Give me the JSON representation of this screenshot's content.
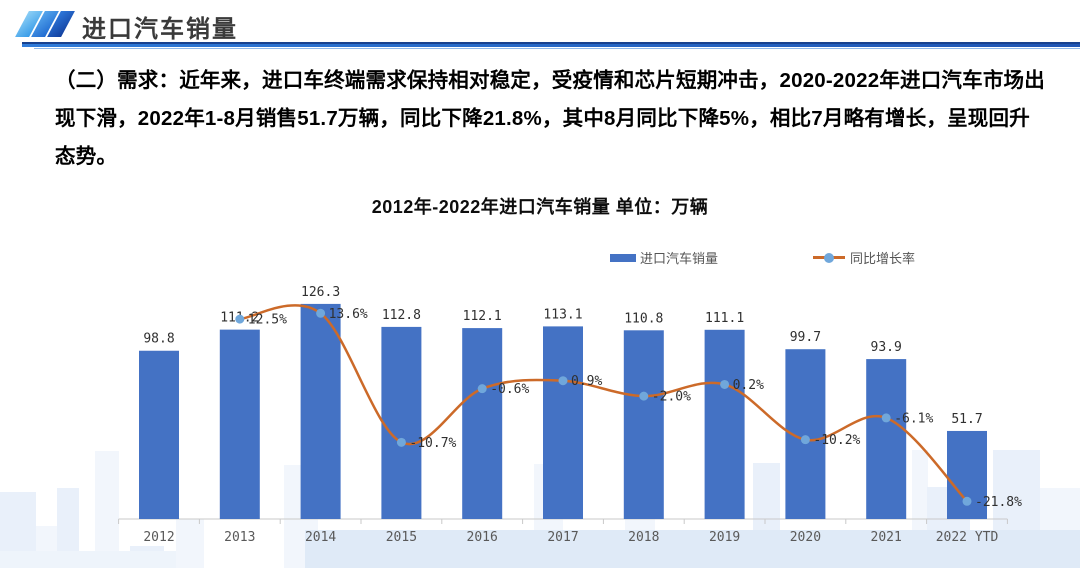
{
  "slide": {
    "header": {
      "title": "进口汽车销量"
    },
    "paragraph": "（二）需求：近年来，进口车终端需求保持相对稳定，受疫情和芯片短期冲击，2020-2022年进口汽车市场出现下滑，2022年1-8月销售51.7万辆，同比下降21.8%，其中8月同比下降5%，相比7月略有增长，呈现回升态势。",
    "chart_title": "2012年-2022年进口汽车销量 单位：万辆"
  },
  "chart_data": {
    "type": "bar",
    "title": "2012年-2022年进口汽车销量",
    "unit": "万辆",
    "categories": [
      "2012",
      "2013",
      "2014",
      "2015",
      "2016",
      "2017",
      "2018",
      "2019",
      "2020",
      "2021",
      "2022 YTD"
    ],
    "series": [
      {
        "name": "进口汽车销量",
        "type": "bar",
        "color": "#4472C4",
        "values": [
          98.8,
          111.2,
          126.3,
          112.8,
          112.1,
          113.1,
          110.8,
          111.1,
          99.7,
          93.9,
          51.7
        ],
        "labels": [
          "98.8",
          "111.2",
          "126.3",
          "112.8",
          "112.1",
          "113.1",
          "110.8",
          "111.1",
          "99.7",
          "93.9",
          "51.7"
        ]
      },
      {
        "name": "同比增长率",
        "type": "line",
        "color": "#CC6A29",
        "marker_color": "#70A7DB",
        "values": [
          null,
          12.5,
          13.6,
          -10.7,
          -0.6,
          0.9,
          -2.0,
          0.2,
          -10.2,
          -6.1,
          -21.8
        ],
        "labels": [
          null,
          "12.5%",
          "13.6%",
          "-10.7%",
          "-0.6%",
          "0.9%",
          "-2.0%",
          "0.2%",
          "-10.2%",
          "-6.1%",
          "-21.8%"
        ]
      }
    ],
    "legend": {
      "position": "top",
      "items": [
        "进口汽车销量",
        "同比增长率"
      ]
    },
    "xlabel": "",
    "ylabel": "",
    "ylim_bar": [
      0,
      140
    ],
    "grid": false
  },
  "colors": {
    "bar": "#4472C4",
    "line": "#CC6A29",
    "marker": "#70A7DB",
    "accent_rule": "#2F7BD9",
    "axis": "#C9C9C9",
    "skyline_light": "#F2F6FC",
    "skyline_mid": "#E9F0FA",
    "skyline_band": "#DFEAF7"
  }
}
